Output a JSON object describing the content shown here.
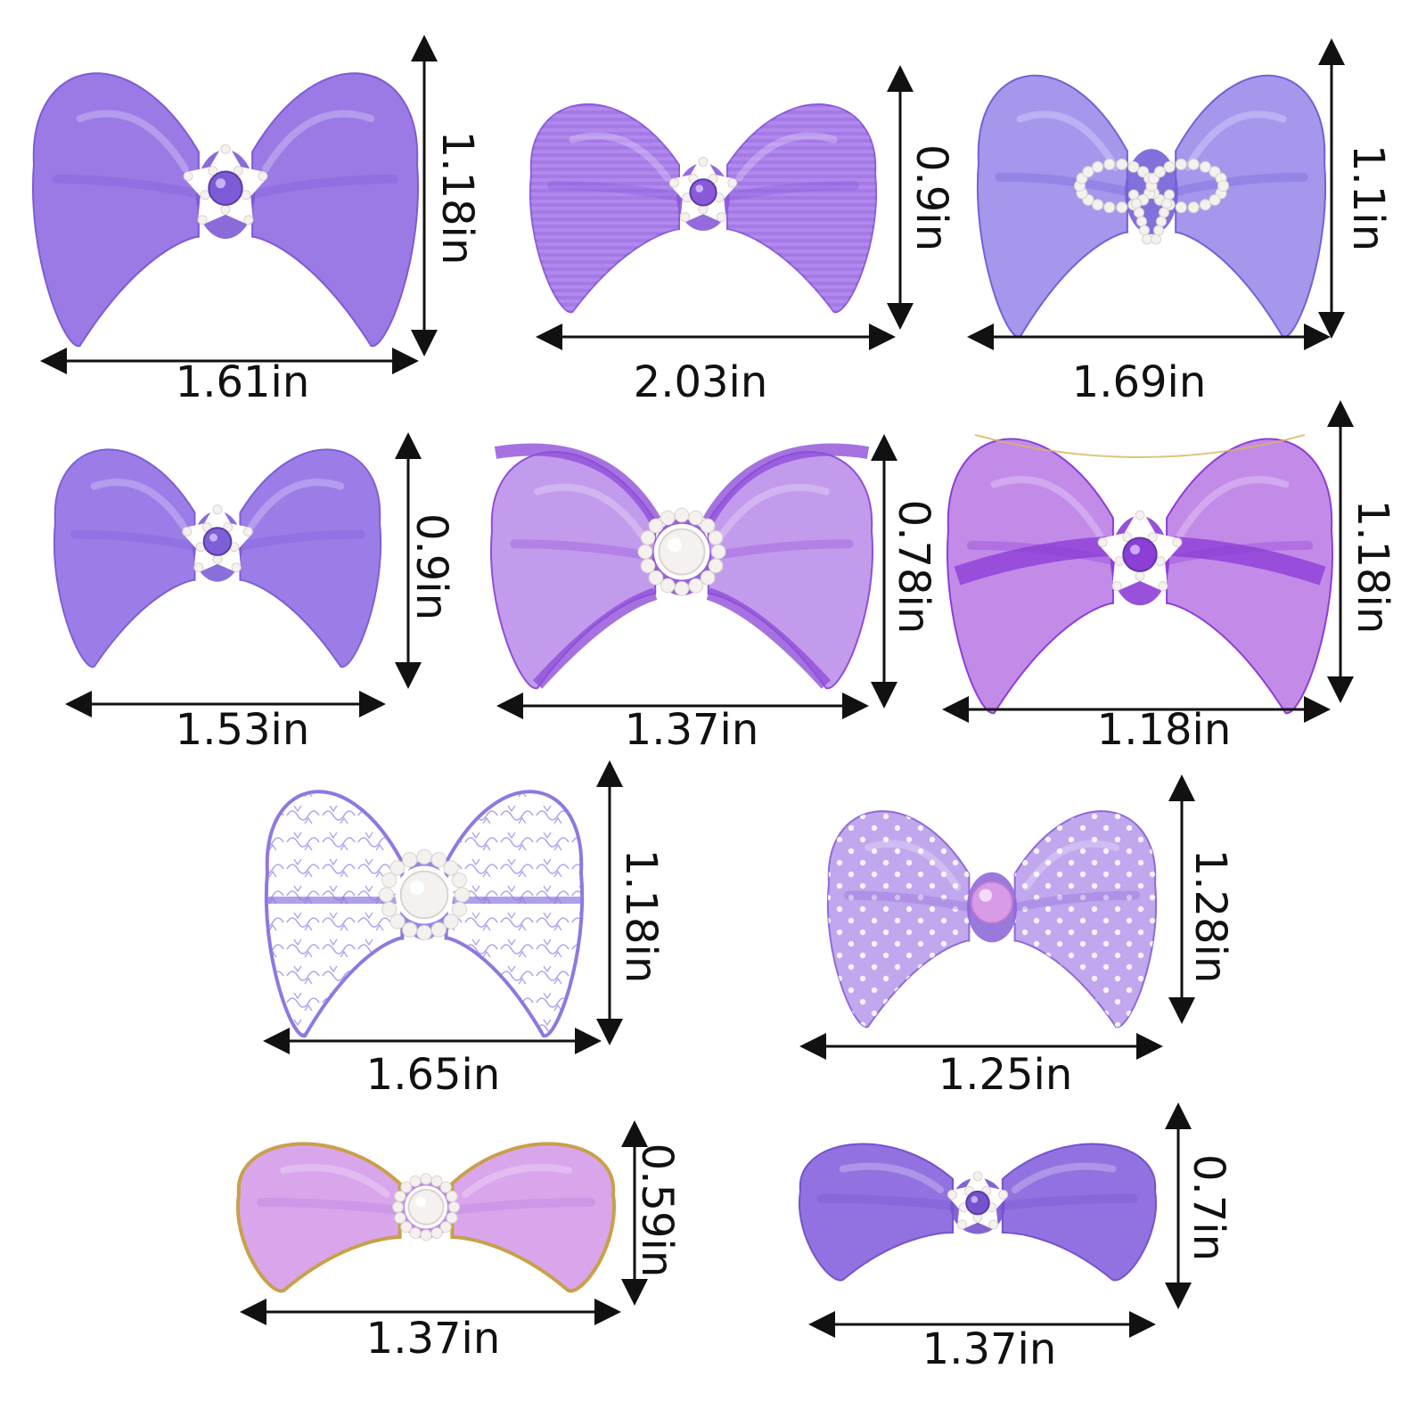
{
  "colors": {
    "background": "#ffffff",
    "arrow": "#111111",
    "pearl": "#f4f1ee",
    "pearl_shadow": "#d9d3d1"
  },
  "bows": [
    {
      "name": "satin-star-rhinestone",
      "width_label": "1.61in",
      "height_label": "1.18in",
      "fabric": "satin",
      "color": "#9b7ae6",
      "dark": "#7e5bd6",
      "center": "rhinestone-star"
    },
    {
      "name": "grosgrain-star-rhinestone",
      "width_label": "2.03in",
      "height_label": "0.9in",
      "fabric": "grosgrain",
      "color": "#a579e8",
      "dark": "#8a5ad9",
      "center": "rhinestone-star"
    },
    {
      "name": "organza-pearl-bow",
      "width_label": "1.69in",
      "height_label": "1.1in",
      "fabric": "organza",
      "color": "#8d7ae8",
      "dark": "#7460d8",
      "center": "pearl-bow"
    },
    {
      "name": "satin-small-star",
      "width_label": "1.53in",
      "height_label": "0.9in",
      "fabric": "satin",
      "color": "#9c7de8",
      "dark": "#7d5fd6",
      "center": "rhinestone-star"
    },
    {
      "name": "organza-pearl-flower",
      "width_label": "1.37in",
      "height_label": "0.78in",
      "fabric": "organza-trim",
      "color": "#b27fe8",
      "dark": "#8e4fd8",
      "center": "pearl-flower"
    },
    {
      "name": "striped-organza-star",
      "width_label": "1.18in",
      "height_label": "1.18in",
      "fabric": "striped",
      "color": "#c38be8",
      "dark": "#8d3ed6",
      "center": "rhinestone-star"
    },
    {
      "name": "lace-pearl-flower",
      "width_label": "1.65in",
      "height_label": "1.18in",
      "fabric": "lace",
      "color": "#b9a6ef",
      "dark": "#8f78e0",
      "center": "pearl-flower"
    },
    {
      "name": "polka-dot-pearl",
      "width_label": "1.25in",
      "height_label": "1.28in",
      "fabric": "polka-dot",
      "color": "#b08ee8",
      "dark": "#8f6ad8",
      "center": "pink-pearl"
    },
    {
      "name": "pink-satin-gold-edge",
      "width_label": "1.37in",
      "height_label": "0.59in",
      "fabric": "satin-gold-edge",
      "color": "#d9a6ec",
      "dark": "#b87fe0",
      "center": "pearl-flower"
    },
    {
      "name": "purple-satin-star",
      "width_label": "1.37in",
      "height_label": "0.7in",
      "fabric": "satin",
      "color": "#9272e0",
      "dark": "#7553cd",
      "center": "rhinestone-star"
    }
  ]
}
